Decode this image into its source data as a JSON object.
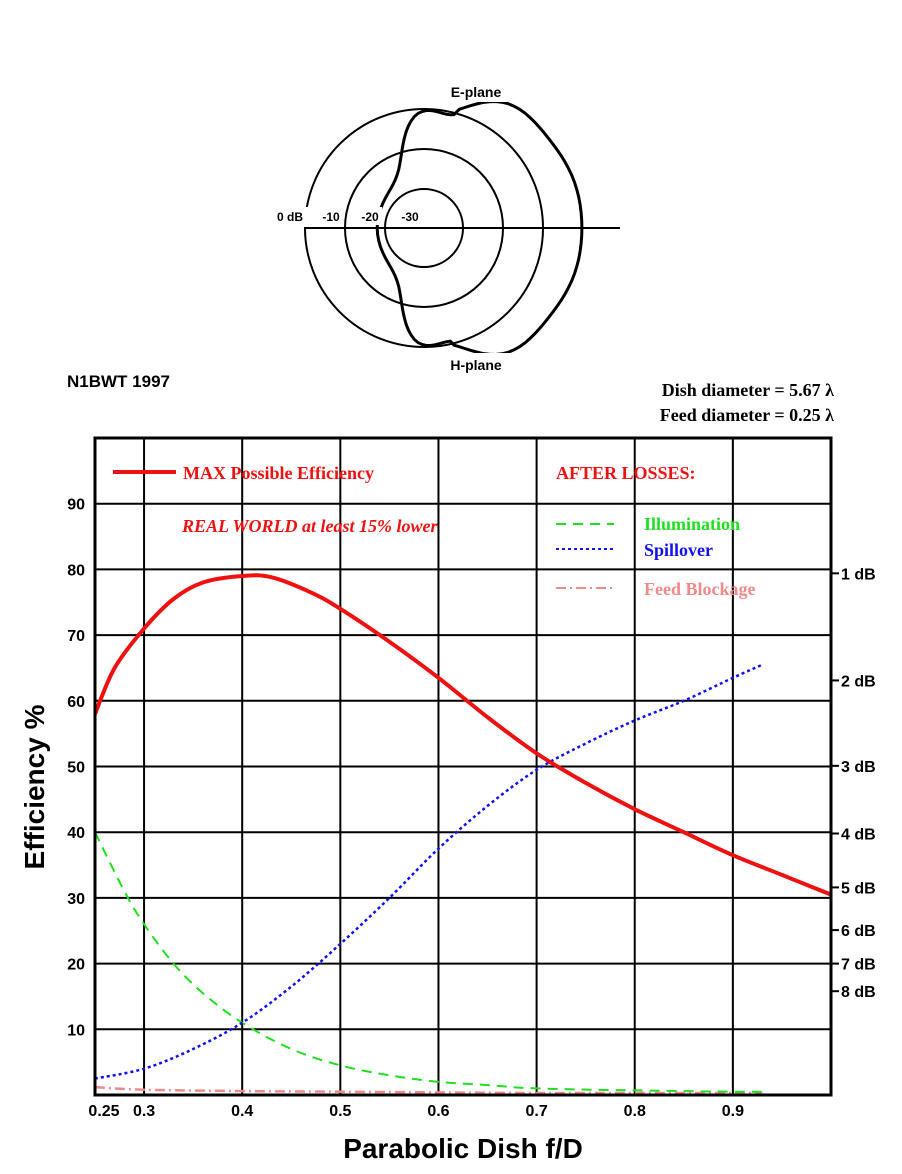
{
  "header": {
    "credit": "N1BWT 1997",
    "dish_note": "Dish diameter = 5.67 λ",
    "feed_note": "Feed diameter = 0.25 λ"
  },
  "polar": {
    "top_label": "E-plane",
    "bottom_label": "H-plane",
    "ring_labels": [
      "0 dB",
      "-10",
      "-20",
      "-30"
    ]
  },
  "colors": {
    "max": "#ee1111",
    "illumination": "#22dd22",
    "spillover": "#1111ee",
    "blockage": "#f08a8a"
  },
  "chart_data": {
    "type": "line",
    "xlabel": "Parabolic Dish f/D",
    "ylabel": "Efficiency %",
    "xlim": [
      0.25,
      1.0
    ],
    "ylim": [
      0,
      100
    ],
    "x_ticks": [
      "0.25",
      "0.3",
      "0.4",
      "0.5",
      "0.6",
      "0.7",
      "0.8",
      "0.9"
    ],
    "x_tick_values": [
      0.25,
      0.3,
      0.4,
      0.5,
      0.6,
      0.7,
      0.8,
      0.9
    ],
    "y_ticks": [
      10,
      20,
      30,
      40,
      50,
      60,
      70,
      80,
      90
    ],
    "right_axis_labels": [
      {
        "label": "1 dB",
        "value": 79.4
      },
      {
        "label": "2 dB",
        "value": 63.1
      },
      {
        "label": "3 dB",
        "value": 50.1
      },
      {
        "label": "4 dB",
        "value": 39.8
      },
      {
        "label": "5 dB",
        "value": 31.6
      },
      {
        "label": "6 dB",
        "value": 25.1
      },
      {
        "label": "7 dB",
        "value": 20.0
      },
      {
        "label": "8 dB",
        "value": 15.8
      }
    ],
    "legend_max": "MAX Possible Efficiency",
    "legend_losses": "AFTER LOSSES:",
    "legend_note": "REAL WORLD at least 15% lower",
    "grid": true,
    "series": [
      {
        "name": "MAX Possible Efficiency",
        "style": "solid",
        "x": [
          0.25,
          0.27,
          0.3,
          0.33,
          0.36,
          0.4,
          0.43,
          0.47,
          0.5,
          0.55,
          0.6,
          0.65,
          0.7,
          0.75,
          0.8,
          0.85,
          0.9,
          0.95,
          1.0
        ],
        "y": [
          58,
          65,
          71,
          75.5,
          78,
          79,
          78.8,
          76.5,
          74,
          69,
          63.5,
          57.5,
          52,
          47.5,
          43.5,
          40,
          36.5,
          33.5,
          30.5
        ]
      },
      {
        "name": "Illumination",
        "style": "dashed",
        "x": [
          0.25,
          0.28,
          0.3,
          0.33,
          0.36,
          0.4,
          0.45,
          0.5,
          0.55,
          0.6,
          0.65,
          0.7,
          0.8,
          0.9,
          0.93
        ],
        "y": [
          40,
          31,
          26,
          20,
          15.5,
          11,
          7,
          4.5,
          3,
          2,
          1.5,
          1,
          0.7,
          0.5,
          0.5
        ]
      },
      {
        "name": "Spillover",
        "style": "dotted",
        "x": [
          0.25,
          0.3,
          0.35,
          0.4,
          0.45,
          0.5,
          0.55,
          0.6,
          0.65,
          0.7,
          0.75,
          0.8,
          0.85,
          0.9,
          0.93
        ],
        "y": [
          2.5,
          4,
          7,
          11,
          16.5,
          23,
          30,
          37.5,
          44,
          49.5,
          53.5,
          57,
          60,
          63.5,
          65.5
        ]
      },
      {
        "name": "Feed Blockage",
        "style": "dashdot",
        "x": [
          0.25,
          0.3,
          0.4,
          0.5,
          0.6,
          0.7,
          0.8,
          0.93
        ],
        "y": [
          1.2,
          0.8,
          0.6,
          0.5,
          0.4,
          0.3,
          0.3,
          0.3
        ]
      }
    ]
  }
}
